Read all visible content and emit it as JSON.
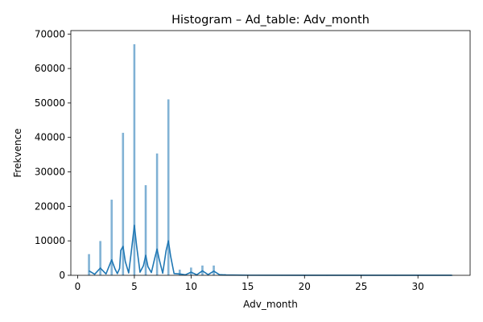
{
  "chart_data": {
    "type": "bar",
    "title": "Histogram – Ad_table: Adv_month",
    "xlabel": "Adv_month",
    "ylabel": "Frekvence",
    "xlim": [
      -0.6,
      34.6
    ],
    "ylim": [
      0,
      71000
    ],
    "xticks": [
      0,
      5,
      10,
      15,
      20,
      25,
      30
    ],
    "yticks": [
      0,
      10000,
      20000,
      30000,
      40000,
      50000,
      60000,
      70000
    ],
    "grid": false,
    "legend": "none",
    "bar_color": "#1f77b4",
    "bins": [
      {
        "x": 1,
        "value": 6100
      },
      {
        "x": 2,
        "value": 9900
      },
      {
        "x": 3,
        "value": 21900
      },
      {
        "x": 4,
        "value": 41300
      },
      {
        "x": 5,
        "value": 67000
      },
      {
        "x": 6,
        "value": 26100
      },
      {
        "x": 7,
        "value": 35300
      },
      {
        "x": 8,
        "value": 51000
      },
      {
        "x": 9,
        "value": 1600
      },
      {
        "x": 10,
        "value": 2200
      },
      {
        "x": 11,
        "value": 2800
      },
      {
        "x": 12,
        "value": 2800
      },
      {
        "x": 13,
        "value": 300
      },
      {
        "x": 14,
        "value": 150
      },
      {
        "x": 15,
        "value": 100
      },
      {
        "x": 16,
        "value": 80
      },
      {
        "x": 17,
        "value": 60
      },
      {
        "x": 18,
        "value": 50
      },
      {
        "x": 20,
        "value": 40
      },
      {
        "x": 22,
        "value": 30
      },
      {
        "x": 25,
        "value": 30
      },
      {
        "x": 28,
        "value": 20
      },
      {
        "x": 30,
        "value": 20
      },
      {
        "x": 33,
        "value": 20
      }
    ],
    "kde": {
      "name": "kde",
      "color": "#1f77b4",
      "points": [
        [
          1.0,
          1300
        ],
        [
          1.5,
          300
        ],
        [
          2.0,
          2100
        ],
        [
          2.5,
          400
        ],
        [
          3.0,
          4500
        ],
        [
          3.3,
          1800
        ],
        [
          3.5,
          500
        ],
        [
          3.7,
          2000
        ],
        [
          3.8,
          7200
        ],
        [
          4.0,
          8400
        ],
        [
          4.2,
          4000
        ],
        [
          4.5,
          700
        ],
        [
          4.7,
          6000
        ],
        [
          5.0,
          14500
        ],
        [
          5.2,
          8500
        ],
        [
          5.5,
          900
        ],
        [
          5.8,
          2800
        ],
        [
          6.0,
          5800
        ],
        [
          6.2,
          2500
        ],
        [
          6.5,
          800
        ],
        [
          6.8,
          5000
        ],
        [
          7.0,
          7600
        ],
        [
          7.2,
          4500
        ],
        [
          7.5,
          600
        ],
        [
          7.8,
          7200
        ],
        [
          8.0,
          10000
        ],
        [
          8.2,
          5500
        ],
        [
          8.5,
          500
        ],
        [
          9.0,
          400
        ],
        [
          9.5,
          150
        ],
        [
          10.0,
          900
        ],
        [
          10.5,
          150
        ],
        [
          11.0,
          1300
        ],
        [
          11.5,
          200
        ],
        [
          12.0,
          1200
        ],
        [
          12.5,
          200
        ],
        [
          13.0,
          100
        ],
        [
          15.0,
          30
        ],
        [
          20.0,
          10
        ],
        [
          25.0,
          10
        ],
        [
          30.0,
          10
        ],
        [
          33.0,
          10
        ]
      ]
    }
  }
}
